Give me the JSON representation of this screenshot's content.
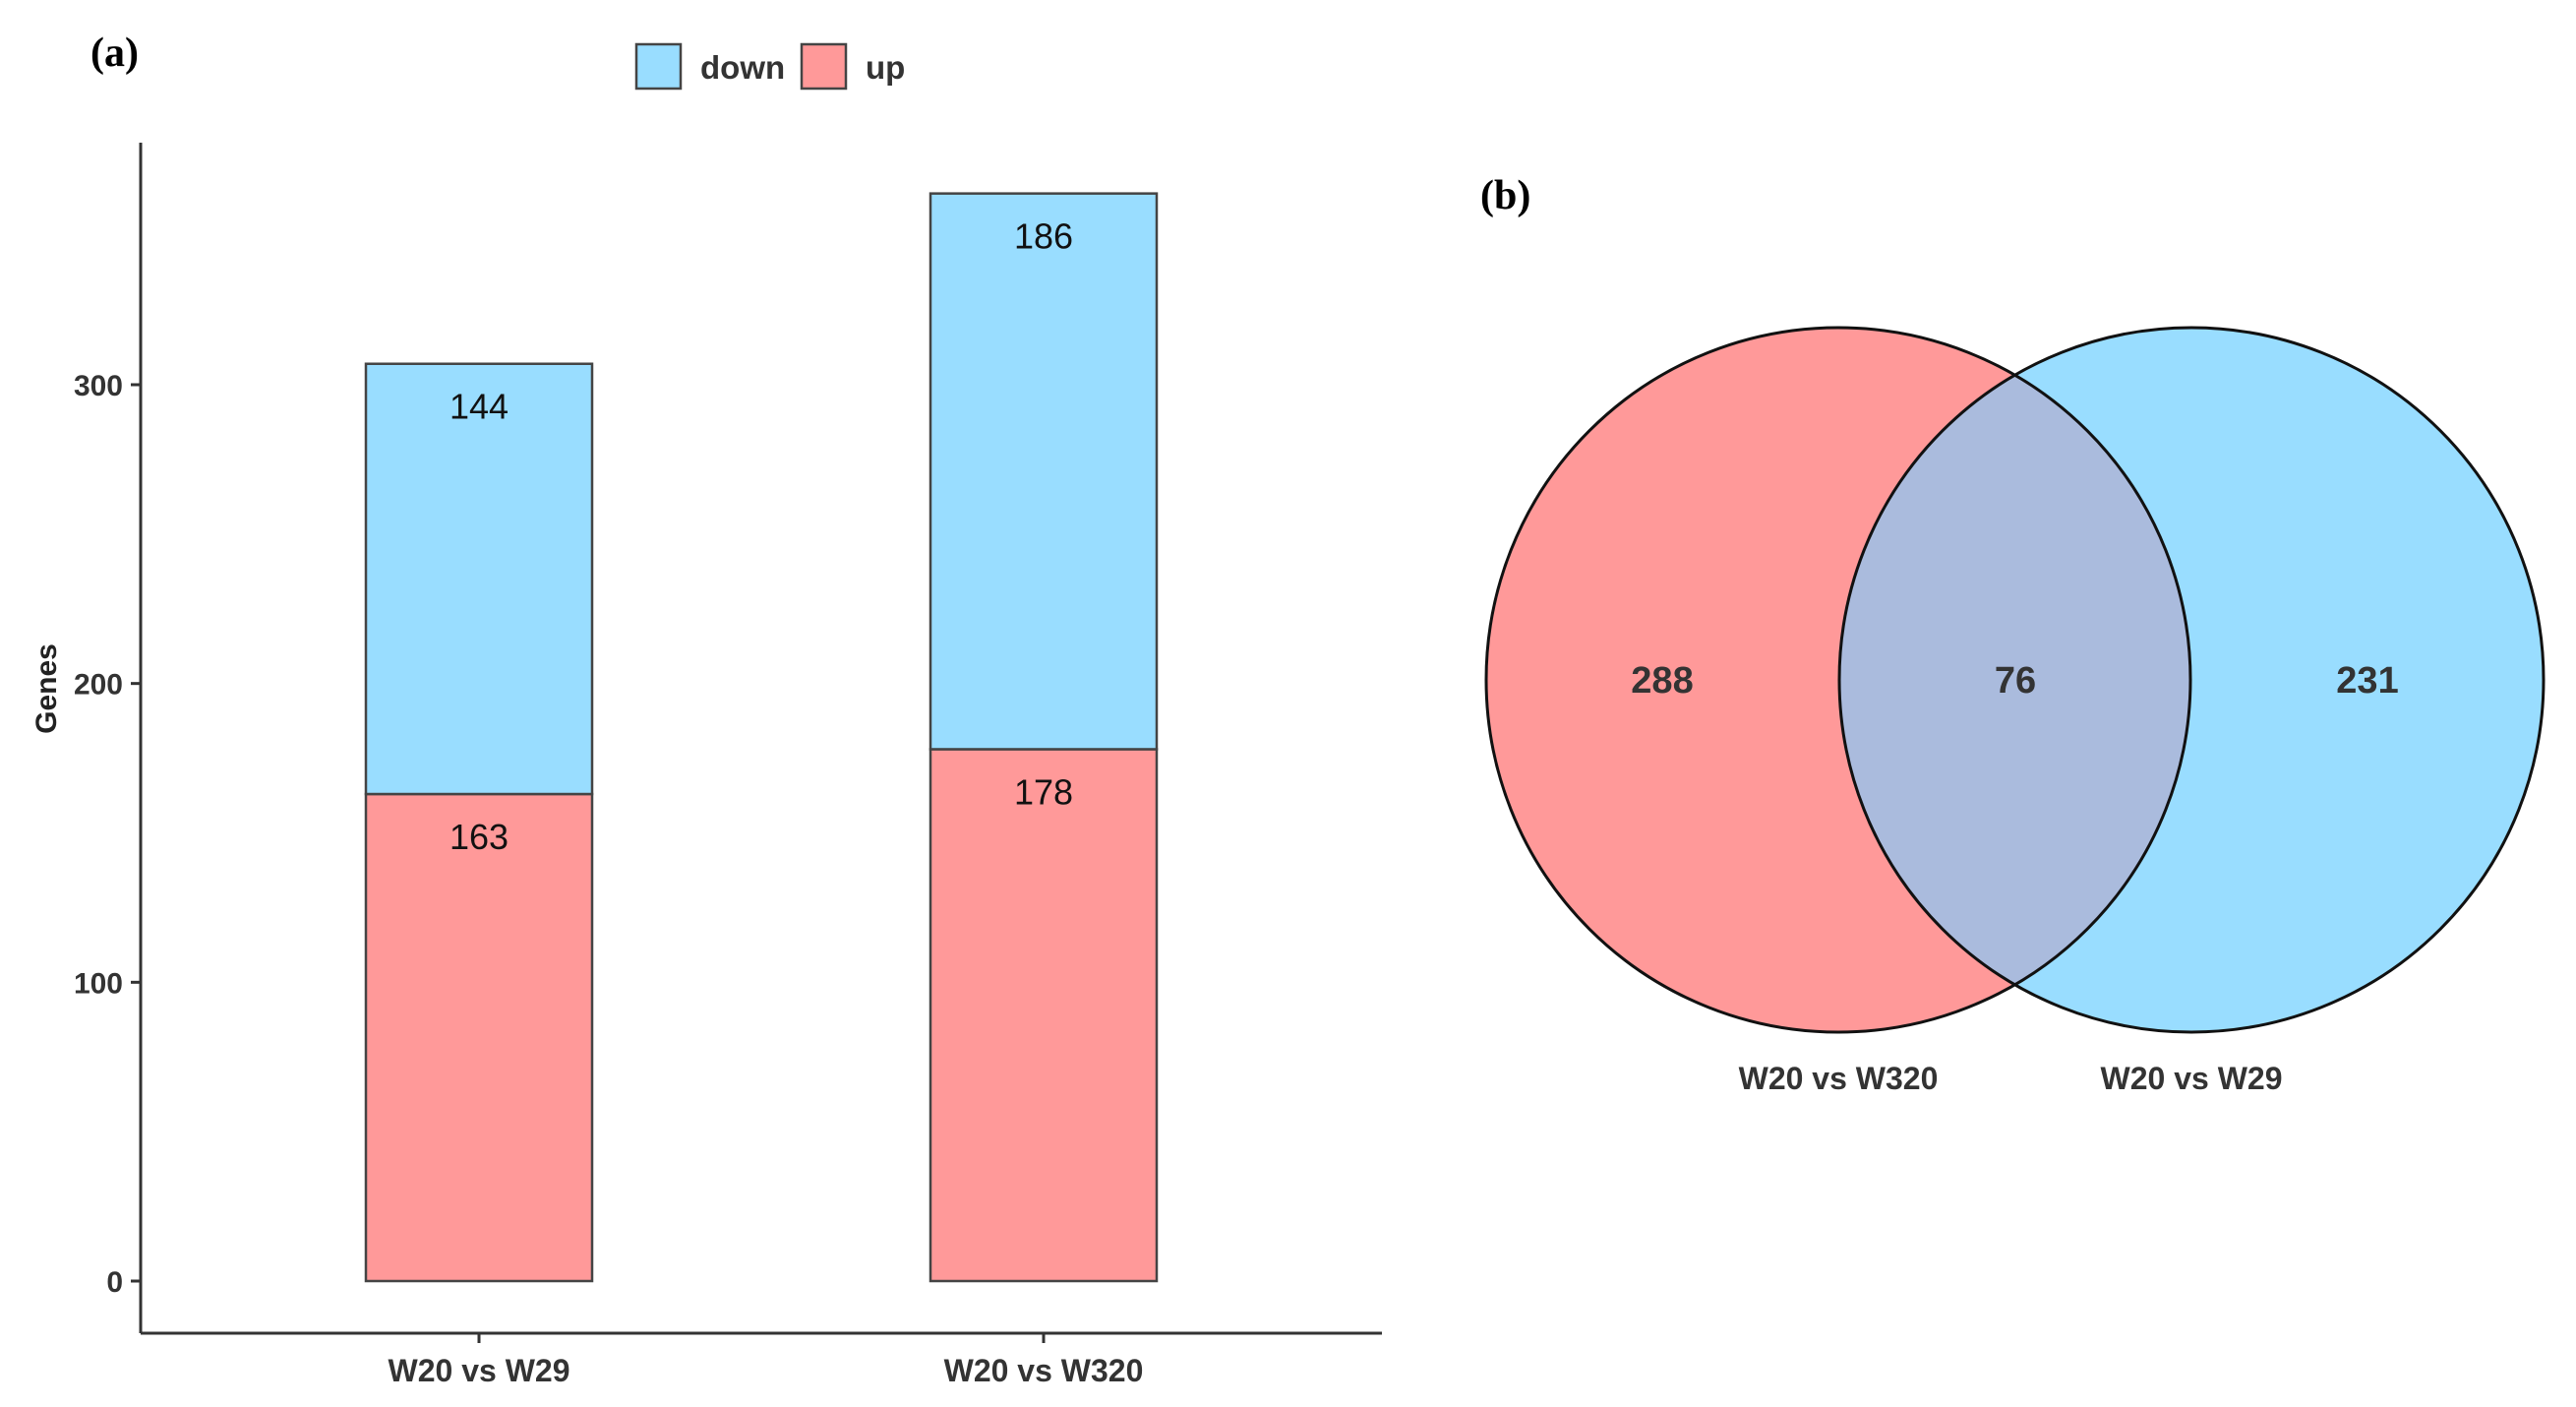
{
  "panels": {
    "a_label": "(a)",
    "b_label": "(b)"
  },
  "chart_data": [
    {
      "type": "bar",
      "stacked": true,
      "title": "",
      "xlabel": "",
      "ylabel": "Genes",
      "categories": [
        "W20 vs W29",
        "W20 vs W320"
      ],
      "series": [
        {
          "name": "up",
          "values": [
            163,
            178
          ],
          "color": "#FF9999"
        },
        {
          "name": "down",
          "values": [
            144,
            186
          ],
          "color": "#99DDFF"
        }
      ],
      "ylim": [
        0,
        381
      ],
      "yticks": [
        0,
        100,
        200,
        300
      ],
      "legend": {
        "placement": "top",
        "entries": [
          "down",
          "up"
        ]
      },
      "grid": false,
      "data_labels": true
    },
    {
      "type": "venn",
      "sets": [
        {
          "name": "W20 vs W320",
          "only": 288,
          "color": "#FF9999"
        },
        {
          "name": "W20 vs W29",
          "only": 231,
          "color": "#99DDFF"
        }
      ],
      "intersection": 76,
      "intersection_color": "#AABBDD"
    }
  ],
  "colors": {
    "up": "#FF9999",
    "down": "#99DDFF",
    "overlap": "#AABBDD",
    "axis": "#333333"
  }
}
